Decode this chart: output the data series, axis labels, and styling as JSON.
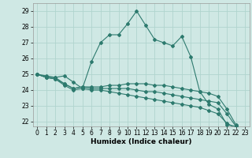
{
  "xlabel": "Humidex (Indice chaleur)",
  "background_color": "#cfe8e4",
  "grid_color": "#b0d4ce",
  "line_color": "#2d7a6e",
  "xlim": [
    -0.5,
    23.5
  ],
  "ylim": [
    21.7,
    29.5
  ],
  "xticks": [
    0,
    1,
    2,
    3,
    4,
    5,
    6,
    7,
    8,
    9,
    10,
    11,
    12,
    13,
    14,
    15,
    16,
    17,
    18,
    19,
    20,
    21,
    22,
    23
  ],
  "yticks": [
    22,
    23,
    24,
    25,
    26,
    27,
    28,
    29
  ],
  "series": [
    [
      25.0,
      24.9,
      24.8,
      24.9,
      24.5,
      24.1,
      25.8,
      27.0,
      27.5,
      27.5,
      28.2,
      29.0,
      28.1,
      27.2,
      27.0,
      26.8,
      27.4,
      26.1,
      23.9,
      23.1,
      22.8,
      21.8,
      21.7
    ],
    [
      25.0,
      24.8,
      24.8,
      24.4,
      24.1,
      24.2,
      24.2,
      24.2,
      24.3,
      24.3,
      24.4,
      24.4,
      24.4,
      24.3,
      24.3,
      24.2,
      24.1,
      24.0,
      23.9,
      23.8,
      23.6,
      22.8,
      21.8
    ],
    [
      25.0,
      24.8,
      24.7,
      24.4,
      24.1,
      24.2,
      24.1,
      24.1,
      24.1,
      24.1,
      24.1,
      24.0,
      23.9,
      23.9,
      23.8,
      23.7,
      23.6,
      23.5,
      23.4,
      23.3,
      23.2,
      22.5,
      21.7
    ],
    [
      25.0,
      24.8,
      24.7,
      24.3,
      24.0,
      24.1,
      24.0,
      24.0,
      23.9,
      23.8,
      23.7,
      23.6,
      23.5,
      23.4,
      23.3,
      23.2,
      23.1,
      23.0,
      22.9,
      22.7,
      22.5,
      21.9,
      21.6
    ]
  ]
}
